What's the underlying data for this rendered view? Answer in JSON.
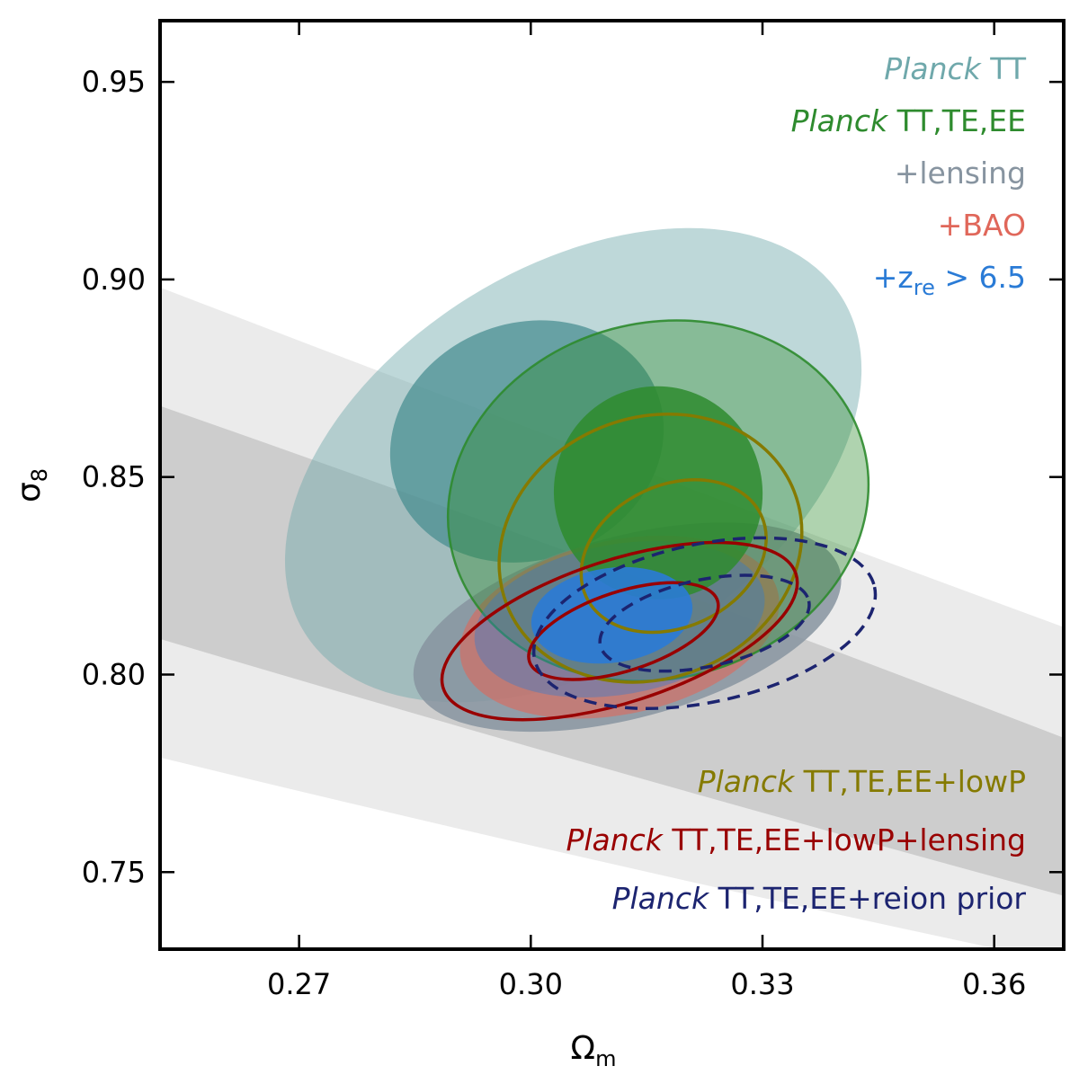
{
  "chart_data": {
    "type": "contour",
    "xlabel": "Ω",
    "xlabel_sub": "m",
    "ylabel": "σ",
    "ylabel_sub": "8",
    "xlim": [
      0.252,
      0.369
    ],
    "ylim": [
      0.7305,
      0.9655
    ],
    "xticks": [
      0.27,
      0.3,
      0.33,
      0.36
    ],
    "xtick_labels": [
      "0.27",
      "0.30",
      "0.33",
      "0.36"
    ],
    "yticks": [
      0.75,
      0.8,
      0.85,
      0.9,
      0.95
    ],
    "ytick_labels": [
      "0.75",
      "0.80",
      "0.85",
      "0.90",
      "0.95"
    ],
    "colors": {
      "planck_tt": "#6fa8ab",
      "planck_tt_dark": "#4a8f92",
      "planck_tttee": "#2e8b2e",
      "lensing": "#8794a0",
      "bao": "#e0675a",
      "zre": "#2a7bd6",
      "lowp": "#857a00",
      "lowp_lensing": "#990000",
      "reion_prior": "#1c2470",
      "band_outer": "#ebebeb",
      "band_inner": "#cdcdcd"
    },
    "legend_top": [
      {
        "ital": "Planck",
        "rest": " TT",
        "color_key": "planck_tt"
      },
      {
        "ital": "Planck",
        "rest": " TT,TE,EE",
        "color_key": "planck_tttee"
      },
      {
        "ital": "",
        "rest": "+lensing",
        "color_key": "lensing"
      },
      {
        "ital": "",
        "rest": "+BAO",
        "color_key": "bao"
      },
      {
        "ital": "",
        "rest": "+z",
        "sub": "re",
        "tail": " > 6.5",
        "color_key": "zre"
      }
    ],
    "legend_bottom": [
      {
        "ital": "Planck",
        "rest": " TT,TE,EE+lowP",
        "color_key": "lowp"
      },
      {
        "ital": "Planck",
        "rest": " TT,TE,EE+lowP+lensing",
        "color_key": "lowp_lensing"
      },
      {
        "ital": "Planck",
        "rest": " TT,TE,EE+reion prior",
        "color_key": "reion_prior"
      }
    ],
    "bands": [
      {
        "name": "outer-band",
        "upper": [
          [
            0.252,
            0.898
          ],
          [
            0.31,
            0.853
          ],
          [
            0.369,
            0.812
          ]
        ],
        "lower": [
          [
            0.252,
            0.779
          ],
          [
            0.31,
            0.75
          ],
          [
            0.369,
            0.727
          ]
        ]
      },
      {
        "name": "inner-band",
        "upper": [
          [
            0.252,
            0.868
          ],
          [
            0.31,
            0.827
          ],
          [
            0.369,
            0.784
          ]
        ],
        "lower": [
          [
            0.252,
            0.809
          ],
          [
            0.31,
            0.774
          ],
          [
            0.369,
            0.744
          ]
        ]
      }
    ],
    "contours": [
      {
        "name": "planck-tt-95",
        "kind": "fill",
        "color_key": "planck_tt",
        "opacity": 0.45,
        "cx": 0.3055,
        "cy": 0.853,
        "rx": 0.041,
        "ry": 0.05,
        "angle": -32
      },
      {
        "name": "planck-tt-68",
        "kind": "fill",
        "color_key": "planck_tt_dark",
        "opacity": 0.75,
        "cx": 0.2995,
        "cy": 0.859,
        "rx": 0.018,
        "ry": 0.03,
        "angle": -20
      },
      {
        "name": "lensing-95",
        "kind": "fill",
        "color_key": "lensing",
        "opacity": 0.85,
        "cx": 0.3125,
        "cy": 0.812,
        "rx": 0.0285,
        "ry": 0.023,
        "angle": -15
      },
      {
        "name": "bao-95",
        "kind": "fill",
        "color_key": "bao",
        "opacity": 0.6,
        "cx": 0.3115,
        "cy": 0.812,
        "rx": 0.021,
        "ry": 0.022,
        "angle": -12
      },
      {
        "name": "planck-tttee-95",
        "kind": "fill-stroke",
        "color_key": "planck_tttee",
        "opacity": 0.38,
        "cx": 0.3165,
        "cy": 0.844,
        "rx": 0.0275,
        "ry": 0.045,
        "angle": -15
      },
      {
        "name": "zre-95",
        "kind": "fill",
        "color_key": "zre",
        "opacity": 0.38,
        "cx": 0.3115,
        "cy": 0.814,
        "rx": 0.019,
        "ry": 0.019,
        "angle": -10
      },
      {
        "name": "planck-tttee-68",
        "kind": "fill",
        "color_key": "planck_tttee",
        "opacity": 0.85,
        "cx": 0.3165,
        "cy": 0.846,
        "rx": 0.0135,
        "ry": 0.027,
        "angle": -12
      },
      {
        "name": "zre-68",
        "kind": "fill",
        "color_key": "zre",
        "opacity": 0.9,
        "cx": 0.3105,
        "cy": 0.815,
        "rx": 0.0105,
        "ry": 0.012,
        "angle": -8
      },
      {
        "name": "lowp-95",
        "kind": "stroke",
        "color_key": "lowp",
        "width": 3.5,
        "dash": "",
        "cx": 0.3155,
        "cy": 0.832,
        "rx": 0.02,
        "ry": 0.033,
        "angle": -22
      },
      {
        "name": "lowp-68",
        "kind": "stroke",
        "color_key": "lowp",
        "width": 3.5,
        "dash": "",
        "cx": 0.3185,
        "cy": 0.83,
        "rx": 0.0125,
        "ry": 0.018,
        "angle": -25
      },
      {
        "name": "lowp-lensing-95",
        "kind": "stroke",
        "color_key": "lowp_lensing",
        "width": 3.5,
        "dash": "",
        "cx": 0.3115,
        "cy": 0.811,
        "rx": 0.024,
        "ry": 0.018,
        "angle": -18
      },
      {
        "name": "lowp-lensing-68",
        "kind": "stroke",
        "color_key": "lowp_lensing",
        "width": 3.5,
        "dash": "",
        "cx": 0.312,
        "cy": 0.811,
        "rx": 0.0128,
        "ry": 0.01,
        "angle": -18
      },
      {
        "name": "reion-prior-95",
        "kind": "stroke",
        "color_key": "reion_prior",
        "width": 3.5,
        "dash": "14 9",
        "cx": 0.3225,
        "cy": 0.813,
        "rx": 0.0225,
        "ry": 0.02,
        "angle": -12
      },
      {
        "name": "reion-prior-68",
        "kind": "stroke",
        "color_key": "reion_prior",
        "width": 3.5,
        "dash": "14 9",
        "cx": 0.3225,
        "cy": 0.813,
        "rx": 0.0138,
        "ry": 0.011,
        "angle": -12
      }
    ]
  }
}
